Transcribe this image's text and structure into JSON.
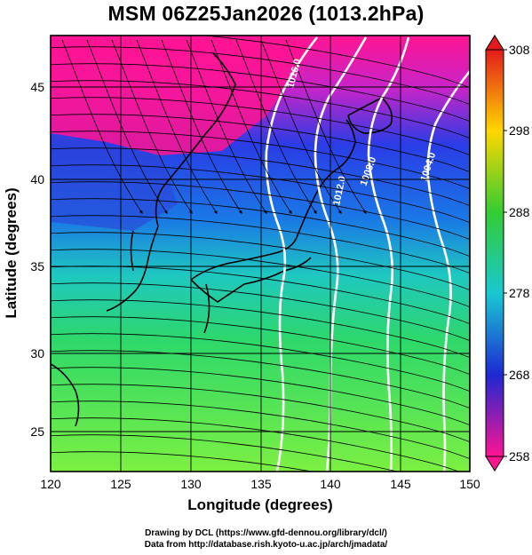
{
  "title": "MSM 06Z25Jan2026 (1013.2hPa)",
  "axes": {
    "xlabel": "Longitude (degrees)",
    "ylabel": "Latitude  (degrees)",
    "xticks": [
      "120",
      "125",
      "130",
      "135",
      "140",
      "145",
      "150"
    ],
    "yticks": [
      "25",
      "30",
      "35",
      "40",
      "45"
    ]
  },
  "colorbar": {
    "ticks": [
      "308",
      "298",
      "288",
      "278",
      "268",
      "258"
    ],
    "colors": {
      "308": "#e31a1c",
      "298": "#ffd700",
      "288": "#33cc33",
      "278": "#19c8d2",
      "268": "#1e28d2",
      "258": "#ff1493"
    }
  },
  "isobars": {
    "labels": [
      "1016.0",
      "1012.0",
      "1008.0",
      "1004.0"
    ]
  },
  "credits": {
    "line1": "Drawing by DCL (https://www.gfd-dennou.org/library/dcl/)",
    "line2": "Data from http://database.rish.kyoto-u.ac.jp/arch/jmadata/"
  },
  "map": {
    "lon_range": [
      120,
      150
    ],
    "lat_range": [
      22.4,
      47.6
    ],
    "field_color_low": "#ff1493",
    "field_color_high": "#7cf042"
  }
}
